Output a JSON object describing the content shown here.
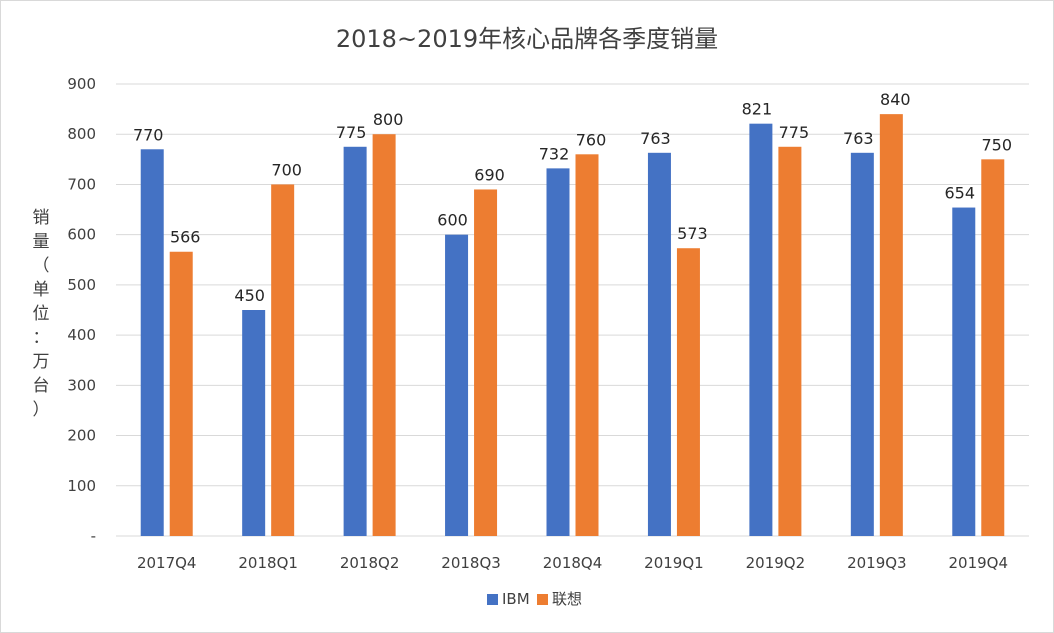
{
  "chart_data": {
    "type": "bar",
    "title": "2018~2019年核心品牌各季度销量",
    "ylabel": "销量（单位：万台）",
    "xlabel": "",
    "ylim": [
      0,
      900
    ],
    "yticks": [
      0,
      100,
      200,
      300,
      400,
      500,
      600,
      700,
      800,
      900
    ],
    "ytick_labels": [
      "-",
      "100",
      "200",
      "300",
      "400",
      "500",
      "600",
      "700",
      "800",
      "900"
    ],
    "grid": true,
    "legend_position": "bottom",
    "categories": [
      "2017Q4",
      "2018Q1",
      "2018Q2",
      "2018Q3",
      "2018Q4",
      "2019Q1",
      "2019Q2",
      "2019Q3",
      "2019Q4"
    ],
    "series": [
      {
        "name": "IBM",
        "color": "#4472c4",
        "values": [
          770,
          450,
          775,
          600,
          732,
          763,
          821,
          763,
          654
        ]
      },
      {
        "name": "联想",
        "color": "#ed7d31",
        "values": [
          566,
          700,
          800,
          690,
          760,
          573,
          775,
          840,
          750
        ]
      }
    ]
  }
}
